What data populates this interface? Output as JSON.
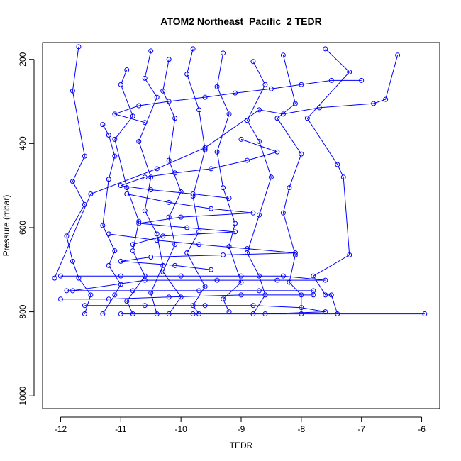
{
  "chart_data": {
    "type": "line",
    "title": "ATOM2 Northeast_Pacific_2 TEDR",
    "xlabel": "TEDR",
    "ylabel": "Pressure (mbar)",
    "xlim": [
      -12.3,
      -5.7
    ],
    "ylim": [
      1030,
      160
    ],
    "y_inverted": true,
    "x_ticks": [
      -12,
      -11,
      -10,
      -9,
      -8,
      -7,
      -6
    ],
    "y_ticks": [
      200,
      400,
      600,
      800,
      1000
    ],
    "marker": "open-circle",
    "series_color": "#0000ff",
    "series": [
      {
        "x": [
          -11.7,
          -11.8,
          -11.6,
          -11.8,
          -11.6,
          -11.9,
          -11.8,
          -11.7,
          -11.5,
          -11.6
        ],
        "y": [
          170,
          275,
          430,
          490,
          545,
          620,
          680,
          720,
          760,
          805
        ]
      },
      {
        "x": [
          -11.3,
          -11.2,
          -11.1,
          -11.2,
          -11.3,
          -11.1,
          -11.2,
          -11.0,
          -11.1,
          -11.3
        ],
        "y": [
          355,
          380,
          430,
          485,
          595,
          655,
          690,
          735,
          760,
          805
        ]
      },
      {
        "x": [
          -10.9,
          -11.0,
          -10.8,
          -11.1,
          -10.9,
          -10.7,
          -10.8,
          -10.6,
          -10.9,
          -10.8
        ],
        "y": [
          225,
          260,
          335,
          390,
          505,
          585,
          655,
          715,
          775,
          805
        ]
      },
      {
        "x": [
          -10.5,
          -10.6,
          -10.4,
          -10.7,
          -10.5,
          -10.6,
          -10.4,
          -10.3,
          -10.5,
          -10.4
        ],
        "y": [
          180,
          245,
          290,
          395,
          480,
          560,
          615,
          690,
          755,
          805
        ]
      },
      {
        "x": [
          -10.2,
          -10.3,
          -10.1,
          -10.2,
          -10.0,
          -10.2,
          -10.1,
          -10.3,
          -10.0,
          -10.2
        ],
        "y": [
          200,
          275,
          340,
          440,
          515,
          575,
          640,
          705,
          765,
          805
        ]
      },
      {
        "x": [
          -9.8,
          -9.9,
          -9.7,
          -9.6,
          -9.8,
          -9.7,
          -9.9,
          -9.6,
          -9.8,
          -9.7
        ],
        "y": [
          175,
          235,
          320,
          415,
          525,
          610,
          660,
          740,
          785,
          805
        ]
      },
      {
        "x": [
          -9.3,
          -9.4,
          -9.2,
          -9.4,
          -9.3,
          -9.1,
          -9.2,
          -9.0,
          -9.3,
          -9.2
        ],
        "y": [
          185,
          265,
          330,
          420,
          505,
          590,
          645,
          730,
          770,
          800
        ]
      },
      {
        "x": [
          -8.8,
          -8.6,
          -8.9,
          -8.7,
          -8.5,
          -8.7,
          -8.9,
          -8.7,
          -8.6,
          -8.8
        ],
        "y": [
          205,
          260,
          345,
          395,
          480,
          570,
          660,
          715,
          760,
          805
        ]
      },
      {
        "x": [
          -8.3,
          -8.1,
          -8.4,
          -8.0,
          -8.2,
          -8.3,
          -8.1,
          -8.2,
          -8.0,
          -8.0
        ],
        "y": [
          190,
          305,
          340,
          425,
          505,
          565,
          665,
          730,
          760,
          805
        ]
      },
      {
        "x": [
          -7.6,
          -7.2,
          -7.9,
          -7.4,
          -7.3,
          -7.2,
          -7.8,
          -7.6,
          -7.5,
          -7.4
        ],
        "y": [
          175,
          230,
          340,
          450,
          480,
          665,
          715,
          760,
          760,
          805
        ]
      },
      {
        "x": [
          -6.4,
          -6.6,
          -6.8,
          -7.7,
          -8.3,
          -8.7,
          -9.6,
          -10.4,
          -11.5,
          -12.1
        ],
        "y": [
          190,
          295,
          305,
          315,
          330,
          320,
          410,
          460,
          520,
          720
        ]
      },
      {
        "x": [
          -12.0,
          -11.0,
          -10.0,
          -9.0,
          -8.3,
          -7.6,
          -8.4,
          -9.4,
          -10.6,
          -11.8
        ],
        "y": [
          715,
          715,
          715,
          715,
          715,
          725,
          725,
          725,
          725,
          750
        ]
      },
      {
        "x": [
          -11.9,
          -10.8,
          -9.7,
          -8.7,
          -7.8,
          -7.8,
          -9.0,
          -10.2,
          -11.2,
          -12.0
        ],
        "y": [
          750,
          750,
          750,
          750,
          750,
          760,
          760,
          765,
          770,
          770
        ]
      },
      {
        "x": [
          -11.6,
          -10.6,
          -9.6,
          -8.8,
          -8.0,
          -7.6,
          -8.6,
          -9.8,
          -11.0,
          -5.95
        ],
        "y": [
          785,
          785,
          785,
          785,
          790,
          800,
          805,
          805,
          805,
          805
        ]
      },
      {
        "x": [
          -11.2,
          -10.4,
          -9.7,
          -8.9,
          -8.1,
          -9.3,
          -10.5,
          -11.0,
          -10.1,
          -9.5
        ],
        "y": [
          615,
          630,
          640,
          650,
          660,
          665,
          670,
          680,
          690,
          700
        ]
      },
      {
        "x": [
          -10.9,
          -10.2,
          -9.5,
          -8.8,
          -10.0,
          -10.7,
          -9.9,
          -9.1,
          -10.3,
          -10.8
        ],
        "y": [
          520,
          540,
          555,
          565,
          575,
          590,
          600,
          610,
          620,
          640
        ]
      },
      {
        "x": [
          -9.0,
          -8.4,
          -8.9,
          -9.5,
          -10.1,
          -10.6,
          -11.0,
          -10.5,
          -9.8,
          -9.2
        ],
        "y": [
          390,
          420,
          440,
          460,
          470,
          480,
          500,
          510,
          520,
          530
        ]
      },
      {
        "x": [
          -7.0,
          -7.5,
          -8.0,
          -8.5,
          -9.1,
          -9.6,
          -10.2,
          -10.7,
          -11.1,
          -10.6
        ],
        "y": [
          250,
          250,
          260,
          270,
          280,
          290,
          300,
          310,
          330,
          350
        ]
      }
    ]
  }
}
